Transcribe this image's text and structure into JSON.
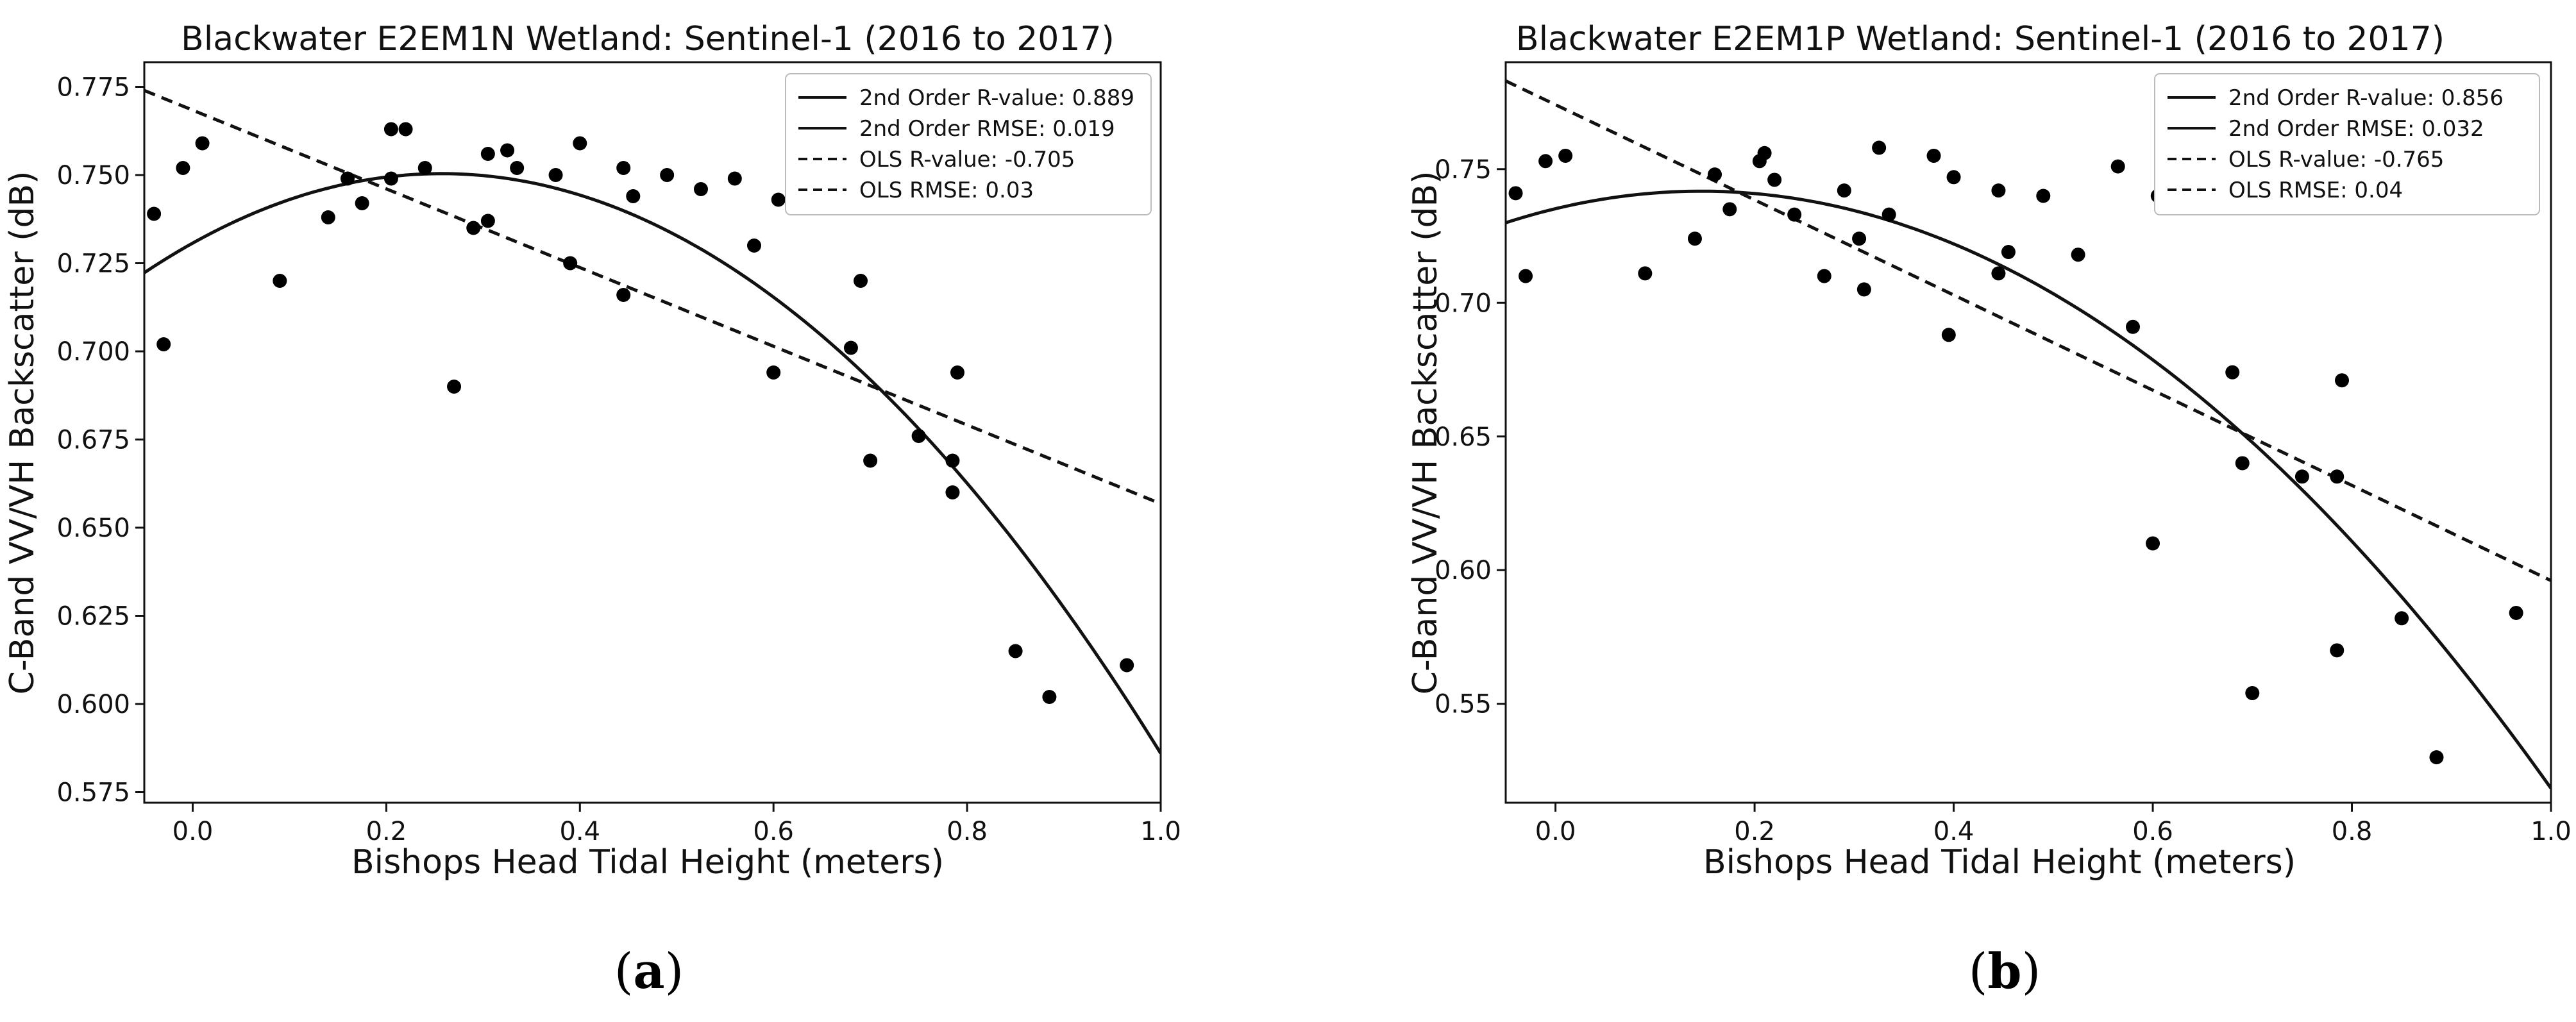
{
  "chart_data": [
    {
      "type": "scatter",
      "panel_label": "a",
      "title": "Blackwater E2EM1N Wetland: Sentinel-1 (2016 to 2017)",
      "xlabel": "Bishops Head Tidal Height (meters)",
      "ylabel": "C-Band VV/VH Backscatter (dB)",
      "xlim": [
        -0.05,
        1.0
      ],
      "ylim": [
        0.572,
        0.782
      ],
      "xticks": [
        0.0,
        0.2,
        0.4,
        0.6,
        0.8,
        1.0
      ],
      "xtick_labels": [
        "0.0",
        "0.2",
        "0.4",
        "0.6",
        "0.8",
        "1.0"
      ],
      "yticks": [
        0.575,
        0.6,
        0.625,
        0.65,
        0.675,
        0.7,
        0.725,
        0.75,
        0.775
      ],
      "ytick_labels": [
        "0.575",
        "0.600",
        "0.625",
        "0.650",
        "0.675",
        "0.700",
        "0.725",
        "0.750",
        "0.775"
      ],
      "legend": {
        "position": "top-right",
        "entries": [
          {
            "label": "2nd Order R-value: 0.889",
            "style": "solid"
          },
          {
            "label": "2nd Order RMSE: 0.019",
            "style": "solid"
          },
          {
            "label": "OLS R-value: -0.705",
            "style": "dashed"
          },
          {
            "label": "OLS RMSE: 0.03",
            "style": "dashed"
          }
        ]
      },
      "fits": {
        "quadratic": {
          "style": "solid",
          "x_range": [
            -0.05,
            1.0
          ],
          "coefficients": [
            0.7307,
            0.1532,
            -0.2979
          ]
        },
        "linear": {
          "style": "dashed",
          "x_range": [
            -0.05,
            1.0
          ],
          "coefficients": [
            0.7684,
            -0.1116
          ]
        }
      },
      "points": [
        [
          -0.04,
          0.739
        ],
        [
          -0.03,
          0.702
        ],
        [
          -0.01,
          0.752
        ],
        [
          0.01,
          0.759
        ],
        [
          0.09,
          0.72
        ],
        [
          0.14,
          0.738
        ],
        [
          0.16,
          0.749
        ],
        [
          0.175,
          0.742
        ],
        [
          0.205,
          0.749
        ],
        [
          0.205,
          0.763
        ],
        [
          0.22,
          0.763
        ],
        [
          0.24,
          0.752
        ],
        [
          0.27,
          0.69
        ],
        [
          0.29,
          0.735
        ],
        [
          0.305,
          0.737
        ],
        [
          0.305,
          0.756
        ],
        [
          0.325,
          0.757
        ],
        [
          0.335,
          0.752
        ],
        [
          0.375,
          0.75
        ],
        [
          0.39,
          0.725
        ],
        [
          0.4,
          0.759
        ],
        [
          0.445,
          0.716
        ],
        [
          0.445,
          0.752
        ],
        [
          0.455,
          0.744
        ],
        [
          0.49,
          0.75
        ],
        [
          0.525,
          0.746
        ],
        [
          0.56,
          0.749
        ],
        [
          0.58,
          0.73
        ],
        [
          0.6,
          0.694
        ],
        [
          0.605,
          0.743
        ],
        [
          0.68,
          0.701
        ],
        [
          0.69,
          0.72
        ],
        [
          0.7,
          0.669
        ],
        [
          0.75,
          0.676
        ],
        [
          0.785,
          0.66
        ],
        [
          0.785,
          0.669
        ],
        [
          0.79,
          0.694
        ],
        [
          0.85,
          0.615
        ],
        [
          0.885,
          0.602
        ],
        [
          0.965,
          0.611
        ]
      ]
    },
    {
      "type": "scatter",
      "panel_label": "b",
      "title": "Blackwater E2EM1P Wetland: Sentinel-1 (2016 to 2017)",
      "xlabel": "Bishops Head Tidal Height (meters)",
      "ylabel": "C-Band VV/VH Backscatter (dB)",
      "xlim": [
        -0.05,
        1.0
      ],
      "ylim": [
        0.513,
        0.79
      ],
      "xticks": [
        0.0,
        0.2,
        0.4,
        0.6,
        0.8,
        1.0
      ],
      "xtick_labels": [
        "0.0",
        "0.2",
        "0.4",
        "0.6",
        "0.8",
        "1.0"
      ],
      "yticks": [
        0.55,
        0.6,
        0.65,
        0.7,
        0.75
      ],
      "ytick_labels": [
        "0.55",
        "0.60",
        "0.65",
        "0.70",
        "0.75"
      ],
      "legend": {
        "position": "top-right",
        "entries": [
          {
            "label": "2nd Order R-value: 0.856",
            "style": "solid"
          },
          {
            "label": "2nd Order RMSE: 0.032",
            "style": "solid"
          },
          {
            "label": "OLS R-value: -0.765",
            "style": "dashed"
          },
          {
            "label": "OLS RMSE: 0.04",
            "style": "dashed"
          }
        ]
      },
      "fits": {
        "quadratic": {
          "style": "solid",
          "x_range": [
            -0.05,
            1.0
          ],
          "coefficients": [
            0.7352,
            0.0896,
            -0.3064
          ]
        },
        "linear": {
          "style": "dashed",
          "x_range": [
            -0.05,
            1.0
          ],
          "coefficients": [
            0.7741,
            -0.178
          ]
        }
      },
      "points": [
        [
          -0.04,
          0.741
        ],
        [
          -0.03,
          0.71
        ],
        [
          -0.01,
          0.753
        ],
        [
          0.01,
          0.755
        ],
        [
          0.09,
          0.711
        ],
        [
          0.14,
          0.724
        ],
        [
          0.16,
          0.748
        ],
        [
          0.175,
          0.735
        ],
        [
          0.205,
          0.753
        ],
        [
          0.21,
          0.756
        ],
        [
          0.22,
          0.746
        ],
        [
          0.24,
          0.733
        ],
        [
          0.27,
          0.71
        ],
        [
          0.29,
          0.742
        ],
        [
          0.305,
          0.724
        ],
        [
          0.31,
          0.705
        ],
        [
          0.325,
          0.758
        ],
        [
          0.335,
          0.733
        ],
        [
          0.38,
          0.755
        ],
        [
          0.395,
          0.688
        ],
        [
          0.4,
          0.747
        ],
        [
          0.445,
          0.711
        ],
        [
          0.445,
          0.742
        ],
        [
          0.455,
          0.719
        ],
        [
          0.49,
          0.74
        ],
        [
          0.525,
          0.718
        ],
        [
          0.565,
          0.751
        ],
        [
          0.58,
          0.691
        ],
        [
          0.6,
          0.61
        ],
        [
          0.605,
          0.74
        ],
        [
          0.68,
          0.674
        ],
        [
          0.69,
          0.64
        ],
        [
          0.7,
          0.554
        ],
        [
          0.75,
          0.635
        ],
        [
          0.785,
          0.57
        ],
        [
          0.785,
          0.635
        ],
        [
          0.79,
          0.671
        ],
        [
          0.85,
          0.582
        ],
        [
          0.885,
          0.53
        ],
        [
          0.965,
          0.584
        ]
      ]
    }
  ]
}
